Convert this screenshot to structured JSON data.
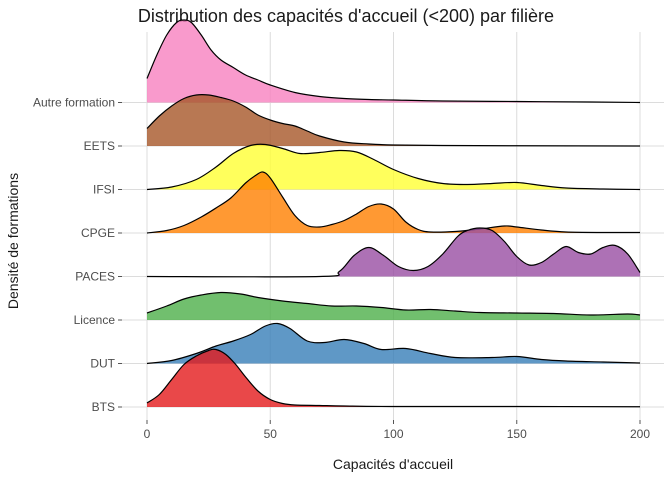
{
  "chart_data": {
    "type": "ridgeline",
    "title": "Distribution des capacités d'accueil (<200) par filière",
    "xlabel": "Capacités d'accueil",
    "ylabel": "Densité de formations",
    "xlim": [
      0,
      200
    ],
    "x_ticks": [
      0,
      50,
      100,
      150,
      200
    ],
    "x_tick_labels": [
      "0",
      "50",
      "100",
      "150",
      "200"
    ],
    "grid": true,
    "legend": "none",
    "series": [
      {
        "name": "BTS",
        "color": "#E41A1C",
        "x": [
          0,
          5,
          10,
          15,
          20,
          25,
          28,
          32,
          36,
          40,
          45,
          50,
          55,
          60,
          70,
          80,
          100,
          150,
          200
        ],
        "y": [
          0.08,
          0.25,
          0.55,
          0.85,
          1.02,
          1.13,
          1.15,
          1.05,
          0.85,
          0.6,
          0.32,
          0.15,
          0.07,
          0.04,
          0.03,
          0.02,
          0.01,
          0.01,
          0.005
        ]
      },
      {
        "name": "DUT",
        "color": "#377EB8",
        "x": [
          0,
          10,
          20,
          28,
          35,
          42,
          48,
          53,
          58,
          65,
          72,
          80,
          88,
          95,
          105,
          115,
          125,
          140,
          150,
          160,
          170,
          185,
          200
        ],
        "y": [
          0.0,
          0.06,
          0.2,
          0.35,
          0.45,
          0.58,
          0.75,
          0.8,
          0.7,
          0.45,
          0.42,
          0.48,
          0.4,
          0.28,
          0.3,
          0.2,
          0.12,
          0.12,
          0.14,
          0.08,
          0.05,
          0.03,
          0.01
        ]
      },
      {
        "name": "Licence",
        "color": "#4DAF4A",
        "x": [
          0,
          8,
          15,
          22,
          30,
          38,
          45,
          55,
          65,
          75,
          85,
          95,
          105,
          115,
          125,
          135,
          150,
          165,
          180,
          195,
          200
        ],
        "y": [
          0.14,
          0.28,
          0.42,
          0.5,
          0.55,
          0.52,
          0.45,
          0.38,
          0.33,
          0.28,
          0.28,
          0.25,
          0.2,
          0.21,
          0.18,
          0.15,
          0.14,
          0.13,
          0.1,
          0.12,
          0.1
        ]
      },
      {
        "name": "PACES",
        "color": "#984EA3",
        "x": [
          0,
          70,
          78,
          84,
          90,
          96,
          102,
          108,
          114,
          120,
          126,
          130,
          135,
          140,
          145,
          150,
          155,
          160,
          165,
          170,
          175,
          180,
          185,
          190,
          195,
          200
        ],
        "y": [
          0.0,
          0.0,
          0.1,
          0.42,
          0.58,
          0.42,
          0.2,
          0.12,
          0.2,
          0.45,
          0.8,
          0.92,
          0.97,
          0.92,
          0.7,
          0.4,
          0.23,
          0.28,
          0.45,
          0.6,
          0.48,
          0.45,
          0.58,
          0.62,
          0.45,
          0.08
        ]
      },
      {
        "name": "CPGE",
        "color": "#FF7F00",
        "x": [
          0,
          8,
          15,
          22,
          28,
          34,
          40,
          44,
          47,
          50,
          55,
          60,
          65,
          70,
          75,
          80,
          85,
          90,
          95,
          100,
          105,
          110,
          115,
          125,
          135,
          145,
          150,
          160,
          170,
          185,
          200
        ],
        "y": [
          0.0,
          0.05,
          0.15,
          0.32,
          0.5,
          0.7,
          1.0,
          1.15,
          1.22,
          1.1,
          0.72,
          0.35,
          0.15,
          0.12,
          0.17,
          0.25,
          0.38,
          0.53,
          0.58,
          0.48,
          0.22,
          0.07,
          0.02,
          0.03,
          0.08,
          0.14,
          0.12,
          0.06,
          0.02,
          0.01,
          0.01
        ]
      },
      {
        "name": "IFSI",
        "color": "#FFFF33",
        "x": [
          0,
          10,
          20,
          28,
          35,
          42,
          48,
          55,
          62,
          70,
          78,
          85,
          92,
          100,
          110,
          120,
          130,
          140,
          150,
          160,
          170,
          185,
          200
        ],
        "y": [
          0.0,
          0.05,
          0.2,
          0.45,
          0.72,
          0.88,
          0.9,
          0.82,
          0.72,
          0.74,
          0.78,
          0.75,
          0.6,
          0.4,
          0.22,
          0.12,
          0.1,
          0.12,
          0.14,
          0.08,
          0.03,
          0.01,
          0.0
        ]
      },
      {
        "name": "EETS",
        "color": "#A65628",
        "x": [
          0,
          5,
          10,
          15,
          20,
          25,
          30,
          35,
          40,
          45,
          50,
          55,
          60,
          65,
          70,
          80,
          90,
          100,
          120,
          150,
          200
        ],
        "y": [
          0.35,
          0.6,
          0.8,
          0.95,
          1.02,
          1.02,
          0.97,
          0.9,
          0.78,
          0.62,
          0.52,
          0.45,
          0.4,
          0.3,
          0.2,
          0.08,
          0.04,
          0.02,
          0.01,
          0.005,
          0.0
        ]
      },
      {
        "name": "Autre formation",
        "color": "#F781BF",
        "x": [
          0,
          4,
          8,
          12,
          15,
          18,
          22,
          26,
          30,
          35,
          40,
          45,
          50,
          60,
          70,
          80,
          90,
          100,
          120,
          150,
          180,
          200
        ],
        "y": [
          0.48,
          0.95,
          1.35,
          1.6,
          1.65,
          1.6,
          1.35,
          1.05,
          0.85,
          0.7,
          0.55,
          0.45,
          0.35,
          0.2,
          0.12,
          0.08,
          0.06,
          0.05,
          0.03,
          0.02,
          0.01,
          0.0
        ]
      }
    ]
  }
}
